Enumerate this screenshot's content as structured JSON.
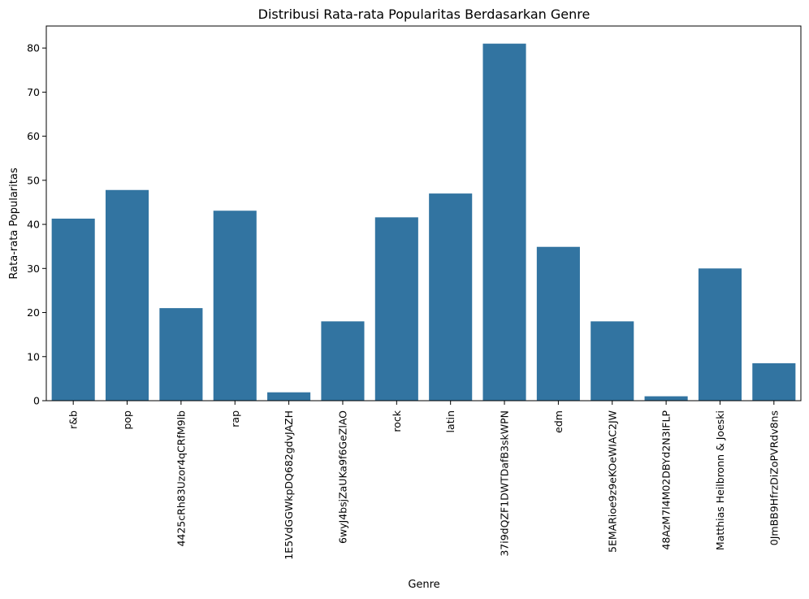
{
  "chart_data": {
    "type": "bar",
    "title": "Distribusi Rata-rata Popularitas Berdasarkan Genre",
    "xlabel": "Genre",
    "ylabel": "Rata-rata Popularitas",
    "ylim": [
      0,
      85
    ],
    "yticks": [
      0,
      10,
      20,
      30,
      40,
      50,
      60,
      70,
      80
    ],
    "grid": false,
    "bar_color": "#3274a1",
    "categories": [
      "r&b",
      "pop",
      "4425cRh83Uzor4qCRfM9lb",
      "rap",
      "1E5VdGGWkpDQ682gdvJAZH",
      "6wyJ4bsjZaUKa9f6GeZlAO",
      "rock",
      "latin",
      "37i9dQZF1DWTDafB3skWPN",
      "edm",
      "5EMARioe9z9eKOeWIAC2JW",
      "48AzM7l4M02DBYd2N3IFLP",
      "Matthias Heilbronn & Joeski",
      "0JmBB9HfrzDiZoPVRdv8ns"
    ],
    "values": [
      41.3,
      47.8,
      21.0,
      43.1,
      1.9,
      18.0,
      41.6,
      47.0,
      81.0,
      34.9,
      18.0,
      1.0,
      30.0,
      8.5
    ]
  }
}
